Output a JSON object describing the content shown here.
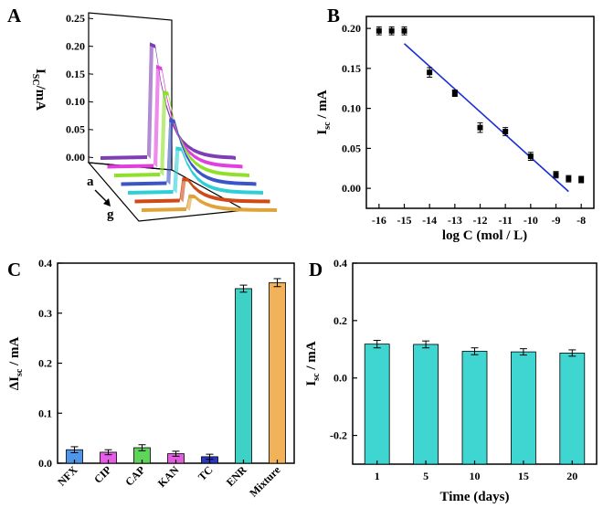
{
  "colors": {
    "axis": "#000000",
    "fit_line": "#1a2fd6",
    "bar_D": "#3fd6d2"
  },
  "panels": {
    "A": {
      "letter": "A"
    },
    "B": {
      "letter": "B"
    },
    "C": {
      "letter": "C"
    },
    "D": {
      "letter": "D"
    }
  },
  "chart_data": [
    {
      "panel": "A",
      "type": "line",
      "projection": "3d-waterfall",
      "ylabel": "I",
      "ylabel_sub": "SC",
      "ylabel_unit": "/mA",
      "ylim": [
        0,
        0.25
      ],
      "yticks": [
        "0.00",
        "0.05",
        "0.10",
        "0.15",
        "0.20",
        "0.25"
      ],
      "depth_labels": [
        "a",
        "g"
      ],
      "series": [
        {
          "key": "a",
          "color": "#7e3fb5",
          "peak": 0.205
        },
        {
          "key": "b",
          "color": "#e23fe0",
          "peak": 0.18
        },
        {
          "key": "c",
          "color": "#8fe02a",
          "peak": 0.15
        },
        {
          "key": "d",
          "color": "#3a55c8",
          "peak": 0.115
        },
        {
          "key": "e",
          "color": "#2dd0d6",
          "peak": 0.08
        },
        {
          "key": "f",
          "color": "#cf4a16",
          "peak": 0.04
        },
        {
          "key": "g",
          "color": "#e0a23a",
          "peak": 0.025
        }
      ]
    },
    {
      "panel": "B",
      "type": "scatter",
      "xlabel": "log C (mol / L)",
      "ylabel": "I",
      "ylabel_sub": "sc",
      "ylabel_unit": " / mA",
      "xlim": [
        -16.5,
        -7.5
      ],
      "ylim": [
        -0.025,
        0.215
      ],
      "xticks": [
        -16,
        -15,
        -14,
        -13,
        -12,
        -11,
        -10,
        -9,
        -8
      ],
      "xtick_labels": [
        "-16",
        "-15",
        "-14",
        "-13",
        "-12",
        "-11",
        "-10",
        "-9",
        "-8"
      ],
      "yticks": [
        0,
        0.05,
        0.1,
        0.15,
        0.2
      ],
      "ytick_labels": [
        "0.00",
        "0.05",
        "0.10",
        "0.15",
        "0.20"
      ],
      "points": [
        {
          "x": -16,
          "y": 0.197,
          "err": 0.005
        },
        {
          "x": -15.5,
          "y": 0.197,
          "err": 0.005
        },
        {
          "x": -15,
          "y": 0.197,
          "err": 0.005
        },
        {
          "x": -14,
          "y": 0.145,
          "err": 0.006
        },
        {
          "x": -13,
          "y": 0.119,
          "err": 0.004
        },
        {
          "x": -12,
          "y": 0.076,
          "err": 0.006
        },
        {
          "x": -11,
          "y": 0.071,
          "err": 0.005
        },
        {
          "x": -10,
          "y": 0.04,
          "err": 0.005
        },
        {
          "x": -9,
          "y": 0.017,
          "err": 0.004
        },
        {
          "x": -8.5,
          "y": 0.012,
          "err": 0.004
        },
        {
          "x": -8,
          "y": 0.011,
          "err": 0.004
        }
      ],
      "fit": {
        "x": [
          -15,
          -8.5
        ],
        "y": [
          0.181,
          -0.004
        ]
      }
    },
    {
      "panel": "C",
      "type": "bar",
      "ylabel": "ΔI",
      "ylabel_sub": "sc",
      "ylabel_unit": " / mA",
      "ylim": [
        0,
        0.4
      ],
      "yticks": [
        0,
        0.1,
        0.2,
        0.3,
        0.4
      ],
      "ytick_labels": [
        "0.0",
        "0.1",
        "0.2",
        "0.3",
        "0.4"
      ],
      "categories": [
        "NFX",
        "CIP",
        "CAP",
        "KAN",
        "TC",
        "ENR",
        "Mixture"
      ],
      "values": [
        0.027,
        0.022,
        0.031,
        0.019,
        0.013,
        0.349,
        0.361
      ],
      "errors": [
        0.006,
        0.005,
        0.006,
        0.005,
        0.005,
        0.007,
        0.008
      ],
      "colors": [
        "#4f95e8",
        "#e65ee6",
        "#5fd45a",
        "#e25ede",
        "#2b38c4",
        "#3fd0c6",
        "#f1b25a"
      ]
    },
    {
      "panel": "D",
      "type": "bar",
      "xlabel": "Time (days)",
      "ylabel": "I",
      "ylabel_sub": "sc",
      "ylabel_unit": " / mA",
      "ylim": [
        -0.3,
        0.4
      ],
      "yticks": [
        -0.2,
        0,
        0.2,
        0.4
      ],
      "ytick_labels": [
        "-0.2",
        "0.0",
        "0.2",
        "0.4"
      ],
      "categories": [
        "1",
        "5",
        "10",
        "15",
        "20"
      ],
      "values": [
        0.118,
        0.117,
        0.093,
        0.091,
        0.087
      ],
      "errors": [
        0.013,
        0.012,
        0.012,
        0.011,
        0.011
      ]
    }
  ]
}
